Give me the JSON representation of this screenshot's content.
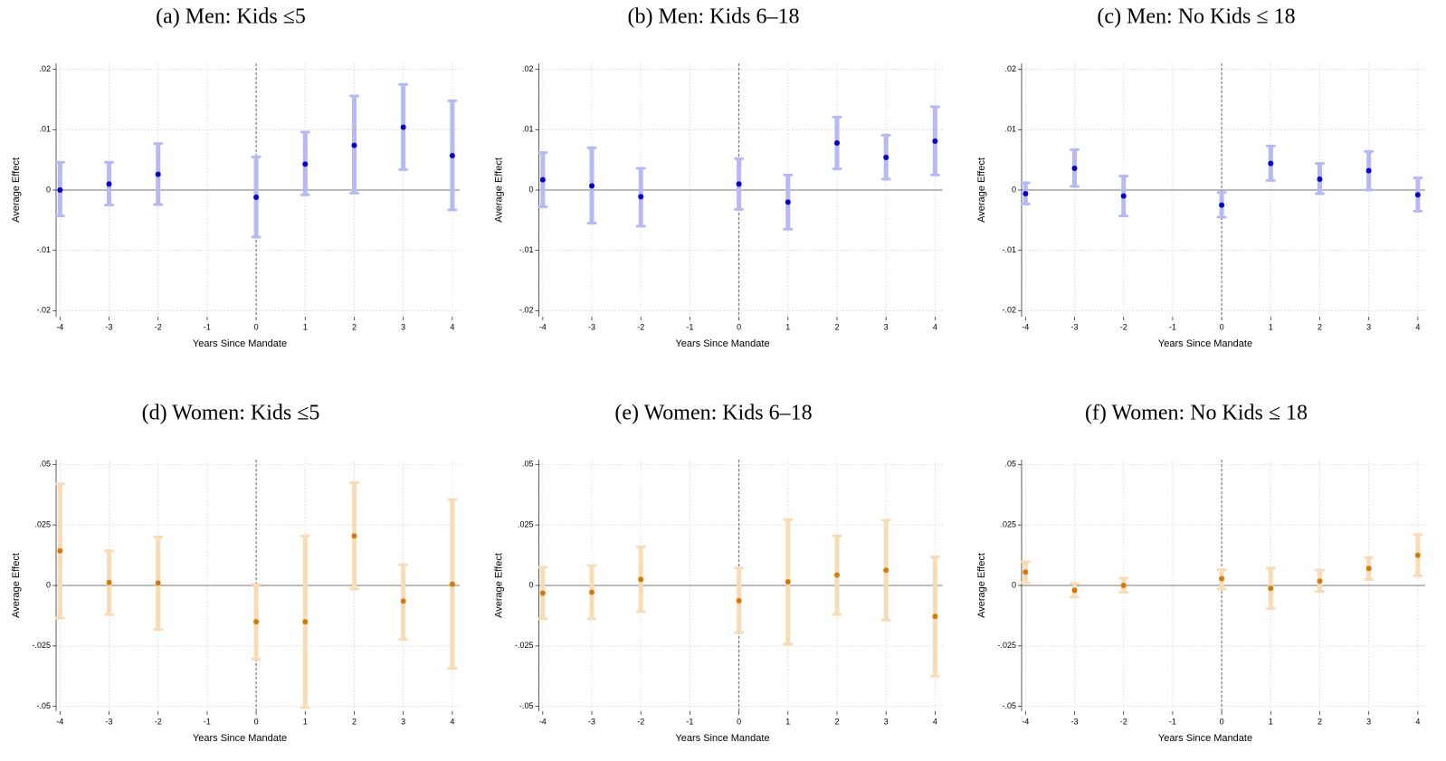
{
  "chart_data": [
    {
      "type": "errorbar",
      "title": "(a) Men: Kids ≤5",
      "xlabel": "Years Since Mandate",
      "ylabel": "Average Effect",
      "x": [
        -4,
        -3,
        -2,
        0,
        1,
        2,
        3,
        4
      ],
      "values": [
        0,
        0.001,
        0.0026,
        -0.0012,
        0.0043,
        0.0074,
        0.0104,
        0.0057
      ],
      "ci_low": [
        -0.0043,
        -0.0025,
        -0.0024,
        -0.0078,
        -0.0008,
        -0.0005,
        0.0034,
        -0.0033
      ],
      "ci_high": [
        0.0046,
        0.0046,
        0.0077,
        0.0055,
        0.0096,
        0.0156,
        0.0175,
        0.0148
      ],
      "color": "#0000d0",
      "ci_color": "#b8b8f4",
      "xlim": [
        -4.08,
        4.15
      ],
      "ylim": [
        -0.021,
        0.021
      ],
      "xticks": [
        -4,
        -3,
        -2,
        -1,
        0,
        1,
        2,
        3,
        4
      ],
      "yticks": [
        {
          "value": 0.02,
          "label": ".02"
        },
        {
          "value": 0.01,
          "label": ".01"
        },
        0,
        {
          "value": -0.01,
          "label": "-.01"
        },
        {
          "value": -0.02,
          "label": "-.02"
        }
      ],
      "grid": true,
      "vline": 0
    },
    {
      "type": "errorbar",
      "title": "(b) Men: Kids 6–18",
      "xlabel": "Years Since Mandate",
      "ylabel": "Average Effect",
      "x": [
        -4,
        -3,
        -2,
        0,
        1,
        2,
        3,
        4
      ],
      "values": [
        0.0017,
        0.0007,
        -0.0011,
        0.001,
        -0.002,
        0.0078,
        0.0054,
        0.0081
      ],
      "ci_low": [
        -0.0028,
        -0.0055,
        -0.006,
        -0.0032,
        -0.0065,
        0.0035,
        0.0018,
        0.0025
      ],
      "ci_high": [
        0.0062,
        0.007,
        0.0036,
        0.0052,
        0.0025,
        0.0121,
        0.0091,
        0.0138
      ],
      "color": "#0000d0",
      "ci_color": "#b8b8f4",
      "xlim": [
        -4.08,
        4.15
      ],
      "ylim": [
        -0.021,
        0.021
      ],
      "xticks": [
        -4,
        -3,
        -2,
        -1,
        0,
        1,
        2,
        3,
        4
      ],
      "yticks": [
        {
          "value": 0.02,
          "label": ".02"
        },
        {
          "value": 0.01,
          "label": ".01"
        },
        0,
        {
          "value": -0.01,
          "label": "-.01"
        },
        {
          "value": -0.02,
          "label": "-.02"
        }
      ],
      "grid": true,
      "vline": 0
    },
    {
      "type": "errorbar",
      "title": "(c) Men: No Kids ≤ 18",
      "xlabel": "Years Since Mandate",
      "ylabel": "Average Effect",
      "x": [
        -4,
        -3,
        -2,
        0,
        1,
        2,
        3,
        4
      ],
      "values": [
        -0.0006,
        0.0036,
        -0.001,
        -0.0025,
        0.0044,
        0.0018,
        0.0032,
        -0.0008
      ],
      "ci_low": [
        -0.0023,
        0.0006,
        -0.0043,
        -0.0045,
        0.0016,
        -0.0006,
        0,
        -0.0035
      ],
      "ci_high": [
        0.0012,
        0.0067,
        0.0023,
        -0.0004,
        0.0073,
        0.0044,
        0.0064,
        0.002
      ],
      "color": "#0000d0",
      "ci_color": "#b8b8f4",
      "xlim": [
        -4.08,
        4.15
      ],
      "ylim": [
        -0.021,
        0.021
      ],
      "xticks": [
        -4,
        -3,
        -2,
        -1,
        0,
        1,
        2,
        3,
        4
      ],
      "yticks": [
        {
          "value": 0.02,
          "label": ".02"
        },
        {
          "value": 0.01,
          "label": ".01"
        },
        0,
        {
          "value": -0.01,
          "label": "-.01"
        },
        {
          "value": -0.02,
          "label": "-.02"
        }
      ],
      "grid": true,
      "vline": 0
    },
    {
      "type": "errorbar",
      "title": "(d) Women: Kids ≤5",
      "xlabel": "Years Since Mandate",
      "ylabel": "Average Effect",
      "x": [
        -4,
        -3,
        -2,
        0,
        1,
        2,
        3,
        4
      ],
      "values": [
        0.0143,
        0.0012,
        0.001,
        -0.015,
        -0.015,
        0.0205,
        -0.0065,
        0.0005
      ],
      "ci_low": [
        -0.0135,
        -0.012,
        -0.0182,
        -0.0305,
        -0.0505,
        -0.0015,
        -0.0223,
        -0.0343
      ],
      "ci_high": [
        0.042,
        0.0143,
        0.02,
        0.0005,
        0.0205,
        0.0425,
        0.0085,
        0.0355
      ],
      "color": "#d9780a",
      "ci_color": "#f8dcb6",
      "xlim": [
        -4.08,
        4.15
      ],
      "ylim": [
        -0.052,
        0.052
      ],
      "xticks": [
        -4,
        -3,
        -2,
        -1,
        0,
        1,
        2,
        3,
        4
      ],
      "yticks": [
        {
          "value": 0.05,
          "label": ".05"
        },
        {
          "value": 0.025,
          "label": ".025"
        },
        0,
        {
          "value": -0.025,
          "label": "-.025"
        },
        {
          "value": -0.05,
          "label": "-.05"
        }
      ],
      "grid": true,
      "vline": 0
    },
    {
      "type": "errorbar",
      "title": "(e) Women: Kids 6–18",
      "xlabel": "Years Since Mandate",
      "ylabel": "Average Effect",
      "x": [
        -4,
        -3,
        -2,
        0,
        1,
        2,
        3,
        4
      ],
      "values": [
        -0.0032,
        -0.0028,
        0.0025,
        -0.0063,
        0.0015,
        0.0043,
        0.0063,
        -0.0128
      ],
      "ci_low": [
        -0.0138,
        -0.0138,
        -0.0108,
        -0.0195,
        -0.0243,
        -0.012,
        -0.0143,
        -0.0375
      ],
      "ci_high": [
        0.0075,
        0.0083,
        0.016,
        0.0072,
        0.0272,
        0.0205,
        0.027,
        0.0118
      ],
      "color": "#d9780a",
      "ci_color": "#f8dcb6",
      "xlim": [
        -4.08,
        4.15
      ],
      "ylim": [
        -0.052,
        0.052
      ],
      "xticks": [
        -4,
        -3,
        -2,
        -1,
        0,
        1,
        2,
        3,
        4
      ],
      "yticks": [
        {
          "value": 0.05,
          "label": ".05"
        },
        {
          "value": 0.025,
          "label": ".025"
        },
        0,
        {
          "value": -0.025,
          "label": "-.025"
        },
        {
          "value": -0.05,
          "label": "-.05"
        }
      ],
      "grid": true,
      "vline": 0
    },
    {
      "type": "errorbar",
      "title": "(f) Women: No Kids ≤ 18",
      "xlabel": "Years Since Mandate",
      "ylabel": "Average Effect",
      "x": [
        -4,
        -3,
        -2,
        0,
        1,
        2,
        3,
        4
      ],
      "values": [
        0.0055,
        -0.002,
        0,
        0.0028,
        -0.0012,
        0.0018,
        0.007,
        0.0125
      ],
      "ci_low": [
        0.0012,
        -0.0048,
        -0.0028,
        -0.0015,
        -0.0095,
        -0.0025,
        0.0025,
        0.004
      ],
      "ci_high": [
        0.0098,
        0.0008,
        0.003,
        0.0065,
        0.0072,
        0.0063,
        0.0115,
        0.021
      ],
      "color": "#d9780a",
      "ci_color": "#f8dcb6",
      "xlim": [
        -4.08,
        4.15
      ],
      "ylim": [
        -0.052,
        0.052
      ],
      "xticks": [
        -4,
        -3,
        -2,
        -1,
        0,
        1,
        2,
        3,
        4
      ],
      "yticks": [
        {
          "value": 0.05,
          "label": ".05"
        },
        {
          "value": 0.025,
          "label": ".025"
        },
        0,
        {
          "value": -0.025,
          "label": "-.025"
        },
        {
          "value": -0.05,
          "label": "-.05"
        }
      ],
      "grid": true,
      "vline": 0
    }
  ]
}
